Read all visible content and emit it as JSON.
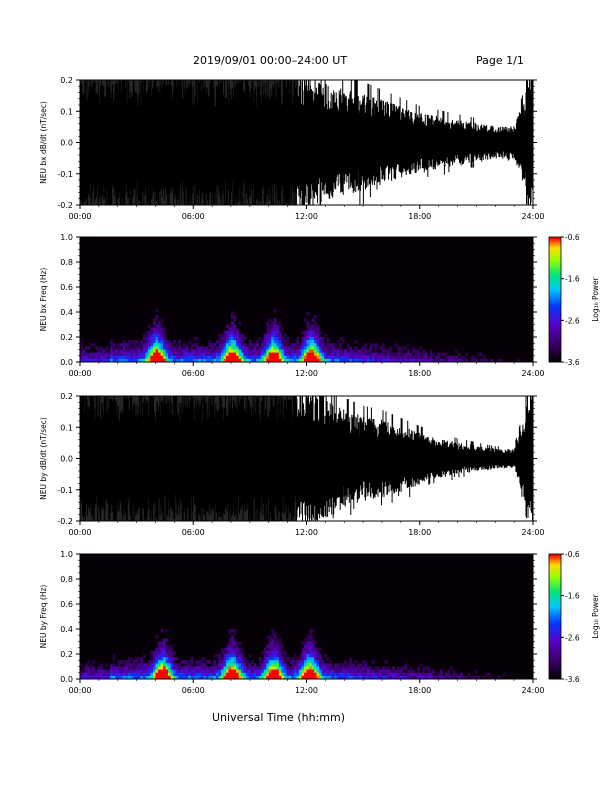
{
  "header": {
    "title": "2019/09/01  00:00–24:00 UT",
    "page": "Page 1/1",
    "xlabel": "Universal Time (hh:mm)"
  },
  "chart_data": [
    {
      "type": "line",
      "ylabel": "NEU bx dB/dt (nT/sec)",
      "ylim": [
        -0.2,
        0.2
      ],
      "yticks": [
        "0.2",
        "0.1",
        "0.0",
        "-0.1",
        "-0.2"
      ],
      "xlim": [
        "00:00",
        "24:00"
      ],
      "xticks": [
        "00:00",
        "06:00",
        "12:00",
        "18:00",
        "24:00"
      ],
      "series": [
        {
          "x_hours": [
            0,
            1,
            2,
            3,
            4,
            5,
            6,
            7,
            8,
            9,
            10,
            11,
            12,
            13,
            14,
            15,
            16,
            17,
            18,
            19,
            20,
            21,
            22,
            23,
            24
          ],
          "amplitude": [
            0.2,
            0.2,
            0.2,
            0.2,
            0.2,
            0.2,
            0.2,
            0.2,
            0.2,
            0.2,
            0.2,
            0.2,
            0.2,
            0.19,
            0.16,
            0.15,
            0.13,
            0.11,
            0.09,
            0.08,
            0.07,
            0.06,
            0.05,
            0.05,
            0.2
          ]
        }
      ]
    },
    {
      "type": "heatmap",
      "ylabel": "NEU bx Freq (Hz)",
      "ylim": [
        0.0,
        1.0
      ],
      "yticks": [
        "1.0",
        "0.8",
        "0.6",
        "0.4",
        "0.2",
        "0.0"
      ],
      "xticks": [
        "00:00",
        "06:00",
        "12:00",
        "18:00",
        "24:00"
      ],
      "colorbar": {
        "label": "Log₁₀ Power",
        "min": -3.6,
        "max": -0.6,
        "ticks": [
          "-0.6",
          "-1.6",
          "-2.6",
          "-3.6"
        ]
      },
      "bursts_hours": [
        4.0,
        8.0,
        10.2,
        12.2
      ],
      "background_decay": 0.55
    },
    {
      "type": "line",
      "ylabel": "NEU by dB/dt (nT/sec)",
      "ylim": [
        -0.2,
        0.2
      ],
      "yticks": [
        "0.2",
        "0.1",
        "0.0",
        "-0.1",
        "-0.2"
      ],
      "xlim": [
        "00:00",
        "24:00"
      ],
      "xticks": [
        "00:00",
        "06:00",
        "12:00",
        "18:00",
        "24:00"
      ],
      "series": [
        {
          "x_hours": [
            0,
            1,
            2,
            3,
            4,
            5,
            6,
            7,
            8,
            9,
            10,
            11,
            12,
            13,
            14,
            15,
            16,
            17,
            18,
            19,
            20,
            21,
            22,
            23,
            24
          ],
          "amplitude": [
            0.2,
            0.2,
            0.2,
            0.2,
            0.2,
            0.2,
            0.2,
            0.2,
            0.2,
            0.2,
            0.2,
            0.2,
            0.2,
            0.19,
            0.15,
            0.13,
            0.12,
            0.1,
            0.08,
            0.06,
            0.05,
            0.04,
            0.03,
            0.03,
            0.2
          ]
        }
      ]
    },
    {
      "type": "heatmap",
      "ylabel": "NEU by Freq (Hz)",
      "ylim": [
        0.0,
        1.0
      ],
      "yticks": [
        "1.0",
        "0.8",
        "0.6",
        "0.4",
        "0.2",
        "0.0"
      ],
      "xticks": [
        "00:00",
        "06:00",
        "12:00",
        "18:00",
        "24:00"
      ],
      "colorbar": {
        "label": "Log₁₀ Power",
        "min": -3.6,
        "max": -0.6,
        "ticks": [
          "-0.6",
          "-1.6",
          "-2.6",
          "-3.6"
        ]
      },
      "bursts_hours": [
        4.3,
        8.0,
        10.2,
        12.1
      ],
      "background_decay": 0.5
    }
  ]
}
